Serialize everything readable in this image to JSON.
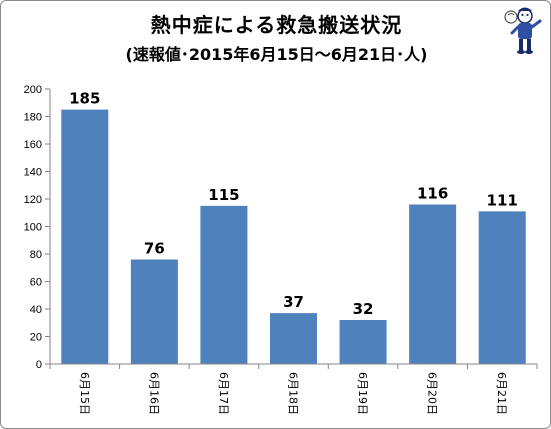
{
  "colors": {
    "bar": "#4f81bd",
    "axis": "#868686",
    "grid": "#d9d9d9",
    "text": "#000000"
  },
  "icons": {
    "mascot": "mascot-icon"
  },
  "chart_data": {
    "type": "bar",
    "title": "熱中症による救急搬送状況",
    "subtitle": "(速報値･2015年6月15日～6月21日･人)",
    "categories": [
      "6月15日",
      "6月16日",
      "6月17日",
      "6月18日",
      "6月19日",
      "6月20日",
      "6月21日"
    ],
    "values": [
      185,
      76,
      115,
      37,
      32,
      116,
      111
    ],
    "data_labels": [
      "185",
      "76",
      "115",
      "37",
      "32",
      "116",
      "111"
    ],
    "ylim": [
      0,
      200
    ],
    "yticks": [
      0,
      20,
      40,
      60,
      80,
      100,
      120,
      140,
      160,
      180,
      200
    ],
    "ytick_labels": [
      "0",
      "20",
      "40",
      "60",
      "80",
      "100",
      "120",
      "140",
      "160",
      "180",
      "200"
    ],
    "xlabel": "",
    "ylabel": "",
    "grid": false,
    "legend": false
  }
}
